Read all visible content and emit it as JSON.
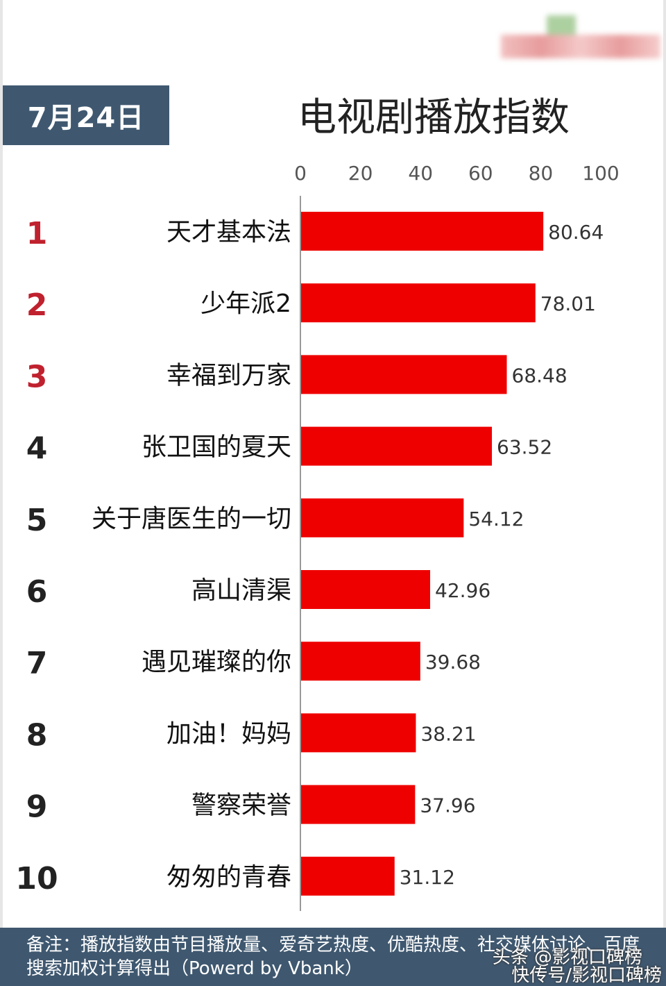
{
  "header": {
    "date": "7月24日",
    "title": "电视剧播放指数"
  },
  "chart_data": {
    "type": "bar",
    "orientation": "horizontal",
    "title": "电视剧播放指数",
    "xlim": [
      0,
      100
    ],
    "x_ticks": [
      0,
      20,
      40,
      60,
      80,
      100
    ],
    "tick_position": "top",
    "grid": false,
    "ranks": [
      "1",
      "2",
      "3",
      "4",
      "5",
      "6",
      "7",
      "8",
      "9",
      "10"
    ],
    "categories": [
      "天才基本法",
      "少年派2",
      "幸福到万家",
      "张卫国的夏天",
      "关于唐医生的一切",
      "高山清渠",
      "遇见璀璨的你",
      "加油！妈妈",
      "警察荣誉",
      "匆匆的青春"
    ],
    "values": [
      80.64,
      78.01,
      68.48,
      63.52,
      54.12,
      42.96,
      39.68,
      38.21,
      37.96,
      31.12
    ],
    "value_labels": [
      "80.64",
      "78.01",
      "68.48",
      "63.52",
      "54.12",
      "42.96",
      "39.68",
      "38.21",
      "37.96",
      "31.12"
    ]
  },
  "colors": {
    "bar": "#ee0000",
    "rank_top": "#c0212e",
    "rank_other": "#222222",
    "header_bg": "#3f5870"
  },
  "footer": {
    "note": "备注：播放指数由节目播放量、爱奇艺热度、优酷热度、社交媒体讨论、百度搜索加权计算得出（Powerd by Vbank）"
  },
  "watermark": {
    "line1": "头条 @影视口碑榜",
    "line2": "快传号/影视口碑榜"
  }
}
